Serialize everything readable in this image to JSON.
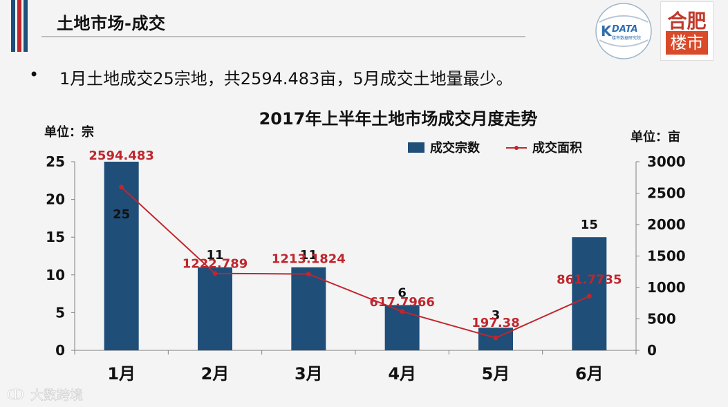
{
  "header": {
    "title": "土地市场-成交"
  },
  "logos": {
    "kdata_text": "DATA",
    "kdata_sub": "楼市数据研究院",
    "hefei_top": "合肥",
    "hefei_bottom": "楼市"
  },
  "bullet": {
    "marker": "•",
    "text": "1月土地成交25宗地，共2594.483亩，5月成交土地量最少。"
  },
  "watermark": {
    "text": "大数跨境"
  },
  "chart_data": {
    "type": "bar",
    "title": "2017年上半年土地市场成交月度走势",
    "categories": [
      "1月",
      "2月",
      "3月",
      "4月",
      "5月",
      "6月"
    ],
    "left_unit": "单位：宗",
    "right_unit": "单位：亩",
    "left_ylim": [
      0,
      25
    ],
    "right_ylim": [
      0,
      3000
    ],
    "left_ticks": [
      "0",
      "5",
      "10",
      "15",
      "20",
      "25"
    ],
    "right_ticks": [
      "0",
      "500",
      "1000",
      "1500",
      "2000",
      "2500",
      "3000"
    ],
    "legend_position": "top-right",
    "series": [
      {
        "name": "成交宗数",
        "type": "bar",
        "axis": "left",
        "color": "#1f4e79",
        "values": [
          25,
          11,
          11,
          6,
          3,
          15
        ],
        "labels": [
          "25",
          "11",
          "11",
          "6",
          "3",
          "15"
        ]
      },
      {
        "name": "成交面积",
        "type": "line",
        "axis": "right",
        "color": "#c0262d",
        "values": [
          2594.483,
          1222.789,
          1213.1824,
          617.7966,
          197.38,
          861.7735
        ],
        "labels": [
          "2594.483",
          "1222.789",
          "1213.1824",
          "617.7966",
          "197.38",
          "861.7735"
        ]
      }
    ]
  }
}
